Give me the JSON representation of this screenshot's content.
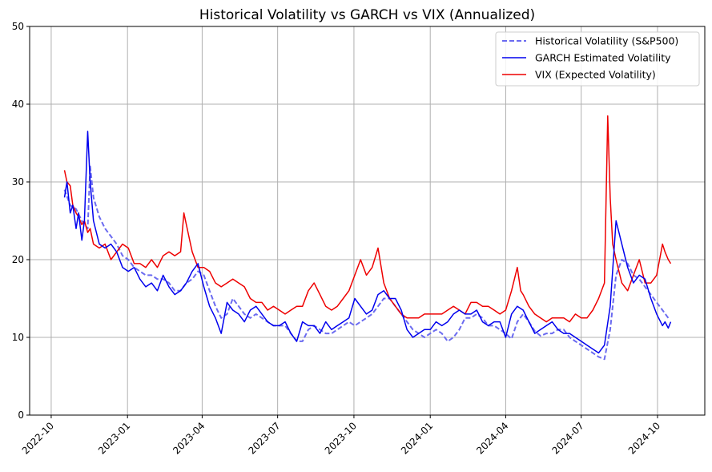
{
  "chart_data": {
    "type": "line",
    "title": "Historical Volatility vs GARCH vs VIX (Annualized)",
    "xlabel": "",
    "ylabel": "",
    "xlim": [
      "2022-09-05",
      "2024-11-27"
    ],
    "ylim": [
      0,
      50
    ],
    "x_ticks": [
      "2022-10",
      "2023-01",
      "2023-04",
      "2023-07",
      "2023-10",
      "2024-01",
      "2024-04",
      "2024-07",
      "2024-10"
    ],
    "y_ticks": [
      0,
      10,
      20,
      30,
      40,
      50
    ],
    "grid": true,
    "legend_position": "top-right",
    "series": [
      {
        "name": "Historical Volatility (S&P500)",
        "color": "#6b6bf0",
        "style": "dashed",
        "x": [
          "2022-10-17",
          "2022-10-24",
          "2022-10-31",
          "2022-11-07",
          "2022-11-14",
          "2022-11-17",
          "2022-11-21",
          "2022-11-28",
          "2022-12-05",
          "2022-12-12",
          "2022-12-19",
          "2022-12-26",
          "2023-01-02",
          "2023-01-09",
          "2023-01-16",
          "2023-01-23",
          "2023-01-30",
          "2023-02-06",
          "2023-02-13",
          "2023-02-20",
          "2023-02-27",
          "2023-03-06",
          "2023-03-13",
          "2023-03-20",
          "2023-03-27",
          "2023-04-03",
          "2023-04-10",
          "2023-04-17",
          "2023-04-24",
          "2023-05-01",
          "2023-05-08",
          "2023-05-15",
          "2023-05-22",
          "2023-05-29",
          "2023-06-05",
          "2023-06-12",
          "2023-06-19",
          "2023-06-26",
          "2023-07-03",
          "2023-07-10",
          "2023-07-17",
          "2023-07-24",
          "2023-07-31",
          "2023-08-07",
          "2023-08-14",
          "2023-08-21",
          "2023-08-28",
          "2023-09-04",
          "2023-09-11",
          "2023-09-18",
          "2023-09-25",
          "2023-10-02",
          "2023-10-09",
          "2023-10-16",
          "2023-10-23",
          "2023-10-30",
          "2023-11-06",
          "2023-11-13",
          "2023-11-20",
          "2023-11-27",
          "2023-12-04",
          "2023-12-11",
          "2023-12-18",
          "2023-12-25",
          "2024-01-01",
          "2024-01-08",
          "2024-01-15",
          "2024-01-22",
          "2024-01-29",
          "2024-02-05",
          "2024-02-12",
          "2024-02-19",
          "2024-02-26",
          "2024-03-04",
          "2024-03-11",
          "2024-03-18",
          "2024-03-25",
          "2024-04-01",
          "2024-04-08",
          "2024-04-15",
          "2024-04-22",
          "2024-04-29",
          "2024-05-06",
          "2024-05-13",
          "2024-05-20",
          "2024-05-27",
          "2024-06-03",
          "2024-06-10",
          "2024-06-17",
          "2024-06-24",
          "2024-07-01",
          "2024-07-08",
          "2024-07-15",
          "2024-07-22",
          "2024-07-29",
          "2024-08-05",
          "2024-08-12",
          "2024-08-19",
          "2024-08-26",
          "2024-09-02",
          "2024-09-09",
          "2024-09-16",
          "2024-09-23",
          "2024-09-30",
          "2024-10-07",
          "2024-10-14"
        ],
        "values": [
          29,
          27,
          26.5,
          25,
          24,
          32,
          28,
          25.5,
          24,
          23,
          22,
          20.5,
          20,
          19,
          18.5,
          18,
          18,
          17.5,
          17.5,
          17,
          16,
          16,
          17,
          17.5,
          18.5,
          18,
          16,
          14,
          12.5,
          13,
          15,
          14,
          13,
          12.5,
          13,
          12.5,
          12,
          11.5,
          11.5,
          11.5,
          10.5,
          9.5,
          9.5,
          11,
          11.5,
          11,
          10.5,
          10.5,
          11,
          11.5,
          12,
          11.5,
          12,
          12.5,
          13,
          14,
          15,
          15,
          14,
          13,
          12,
          11,
          10.5,
          10,
          10.5,
          11,
          10.5,
          9.5,
          10,
          11,
          12.5,
          12.5,
          13,
          12.5,
          11.5,
          11.5,
          11,
          10.5,
          9.8,
          12,
          13,
          12,
          10.8,
          10.2,
          10.5,
          10.5,
          11,
          11,
          10,
          9.5,
          9,
          8.5,
          8,
          7.5,
          7.2,
          11,
          18,
          20,
          19.5,
          18,
          17.5,
          16.5,
          15.5,
          14.5,
          13.5,
          12.5
        ]
      },
      {
        "name": "GARCH Estimated Volatility",
        "color": "#0000ee",
        "style": "solid",
        "x": [
          "2022-10-17",
          "2022-10-20",
          "2022-10-24",
          "2022-10-27",
          "2022-10-31",
          "2022-11-03",
          "2022-11-07",
          "2022-11-10",
          "2022-11-14",
          "2022-11-17",
          "2022-11-21",
          "2022-11-28",
          "2022-12-05",
          "2022-12-12",
          "2022-12-19",
          "2022-12-26",
          "2023-01-02",
          "2023-01-09",
          "2023-01-16",
          "2023-01-23",
          "2023-01-30",
          "2023-02-06",
          "2023-02-13",
          "2023-02-20",
          "2023-02-27",
          "2023-03-06",
          "2023-03-13",
          "2023-03-20",
          "2023-03-27",
          "2023-04-03",
          "2023-04-10",
          "2023-04-17",
          "2023-04-24",
          "2023-05-01",
          "2023-05-08",
          "2023-05-15",
          "2023-05-22",
          "2023-05-29",
          "2023-06-05",
          "2023-06-12",
          "2023-06-19",
          "2023-06-26",
          "2023-07-03",
          "2023-07-10",
          "2023-07-17",
          "2023-07-24",
          "2023-07-31",
          "2023-08-07",
          "2023-08-14",
          "2023-08-21",
          "2023-08-28",
          "2023-09-04",
          "2023-09-11",
          "2023-09-18",
          "2023-09-25",
          "2023-10-02",
          "2023-10-09",
          "2023-10-16",
          "2023-10-23",
          "2023-10-30",
          "2023-11-06",
          "2023-11-13",
          "2023-11-20",
          "2023-11-27",
          "2023-12-04",
          "2023-12-11",
          "2023-12-18",
          "2023-12-25",
          "2024-01-01",
          "2024-01-08",
          "2024-01-15",
          "2024-01-22",
          "2024-01-29",
          "2024-02-05",
          "2024-02-12",
          "2024-02-19",
          "2024-02-26",
          "2024-03-04",
          "2024-03-11",
          "2024-03-18",
          "2024-03-25",
          "2024-04-01",
          "2024-04-08",
          "2024-04-15",
          "2024-04-22",
          "2024-04-29",
          "2024-05-06",
          "2024-05-13",
          "2024-05-20",
          "2024-05-27",
          "2024-06-03",
          "2024-06-10",
          "2024-06-17",
          "2024-06-24",
          "2024-07-01",
          "2024-07-08",
          "2024-07-15",
          "2024-07-22",
          "2024-07-29",
          "2024-08-05",
          "2024-08-12",
          "2024-08-19",
          "2024-08-26",
          "2024-09-02",
          "2024-09-09",
          "2024-09-16",
          "2024-09-23",
          "2024-09-30",
          "2024-10-07",
          "2024-10-10",
          "2024-10-14",
          "2024-10-17"
        ],
        "values": [
          28,
          30,
          26,
          27,
          24,
          26,
          22.5,
          25,
          36.5,
          30,
          25,
          22,
          21.5,
          22,
          21,
          19,
          18.5,
          19,
          17.5,
          16.5,
          17,
          16,
          18,
          16.5,
          15.5,
          16,
          17,
          18.5,
          19.5,
          16.5,
          14,
          12.5,
          10.5,
          14.5,
          13.5,
          13,
          12,
          13.5,
          14,
          13,
          12,
          11.5,
          11.5,
          12,
          10.5,
          9.5,
          12,
          11.5,
          11.5,
          10.5,
          12,
          11,
          11.5,
          12,
          12.5,
          15,
          14,
          13,
          13.5,
          15.5,
          16,
          15,
          15,
          13.5,
          11,
          10,
          10.5,
          11,
          11,
          12,
          11.5,
          12,
          13,
          13.5,
          13,
          13,
          13.5,
          12,
          11.5,
          12,
          12,
          10,
          13,
          14,
          13.5,
          12,
          10.5,
          11,
          11.5,
          12,
          11,
          10.5,
          10.5,
          10,
          9.5,
          9,
          8.5,
          8,
          9,
          14,
          25,
          22,
          19,
          17,
          18,
          17.5,
          15,
          13,
          11.5,
          12,
          11.2,
          12
        ]
      },
      {
        "name": "VIX (Expected Volatility)",
        "color": "#ee0000",
        "style": "solid",
        "x": [
          "2022-10-17",
          "2022-10-20",
          "2022-10-24",
          "2022-10-27",
          "2022-10-31",
          "2022-11-03",
          "2022-11-07",
          "2022-11-10",
          "2022-11-14",
          "2022-11-17",
          "2022-11-21",
          "2022-11-28",
          "2022-12-05",
          "2022-12-12",
          "2022-12-19",
          "2022-12-26",
          "2023-01-02",
          "2023-01-09",
          "2023-01-16",
          "2023-01-23",
          "2023-01-30",
          "2023-02-06",
          "2023-02-13",
          "2023-02-20",
          "2023-02-27",
          "2023-03-06",
          "2023-03-10",
          "2023-03-13",
          "2023-03-16",
          "2023-03-20",
          "2023-03-27",
          "2023-04-03",
          "2023-04-10",
          "2023-04-17",
          "2023-04-24",
          "2023-05-01",
          "2023-05-08",
          "2023-05-15",
          "2023-05-22",
          "2023-05-29",
          "2023-06-05",
          "2023-06-12",
          "2023-06-19",
          "2023-06-26",
          "2023-07-03",
          "2023-07-10",
          "2023-07-17",
          "2023-07-24",
          "2023-07-31",
          "2023-08-07",
          "2023-08-14",
          "2023-08-21",
          "2023-08-28",
          "2023-09-04",
          "2023-09-11",
          "2023-09-18",
          "2023-09-25",
          "2023-10-02",
          "2023-10-09",
          "2023-10-16",
          "2023-10-23",
          "2023-10-30",
          "2023-11-06",
          "2023-11-13",
          "2023-11-20",
          "2023-11-27",
          "2023-12-04",
          "2023-12-11",
          "2023-12-18",
          "2023-12-25",
          "2024-01-01",
          "2024-01-08",
          "2024-01-15",
          "2024-01-22",
          "2024-01-29",
          "2024-02-05",
          "2024-02-12",
          "2024-02-19",
          "2024-02-26",
          "2024-03-04",
          "2024-03-11",
          "2024-03-18",
          "2024-03-25",
          "2024-04-01",
          "2024-04-08",
          "2024-04-15",
          "2024-04-19",
          "2024-04-22",
          "2024-04-29",
          "2024-05-06",
          "2024-05-13",
          "2024-05-20",
          "2024-05-27",
          "2024-06-03",
          "2024-06-10",
          "2024-06-17",
          "2024-06-24",
          "2024-07-01",
          "2024-07-08",
          "2024-07-15",
          "2024-07-22",
          "2024-07-29",
          "2024-08-02",
          "2024-08-05",
          "2024-08-08",
          "2024-08-12",
          "2024-08-19",
          "2024-08-26",
          "2024-09-02",
          "2024-09-09",
          "2024-09-16",
          "2024-09-23",
          "2024-09-30",
          "2024-10-07",
          "2024-10-10",
          "2024-10-14",
          "2024-10-17"
        ],
        "values": [
          31.5,
          30,
          29.5,
          27,
          26,
          25.5,
          24.5,
          25,
          23.5,
          24,
          22,
          21.5,
          22,
          20,
          21,
          22,
          21.5,
          19.5,
          19.5,
          19,
          20,
          19,
          20.5,
          21,
          20.5,
          21,
          26,
          24.5,
          23,
          21,
          19,
          19,
          18.5,
          17,
          16.5,
          17,
          17.5,
          17,
          16.5,
          15,
          14.5,
          14.5,
          13.5,
          14,
          13.5,
          13,
          13.5,
          14,
          14,
          16,
          17,
          15.5,
          14,
          13.5,
          14,
          15,
          16,
          18,
          20,
          18,
          19,
          21.5,
          17,
          15,
          14,
          13,
          12.5,
          12.5,
          12.5,
          13,
          13,
          13,
          13,
          13.5,
          14,
          13.5,
          13,
          14.5,
          14.5,
          14,
          14,
          13.5,
          13,
          13.5,
          16,
          19,
          16,
          15.5,
          14,
          13,
          12.5,
          12,
          12.5,
          12.5,
          12.5,
          12,
          13,
          12.5,
          12.5,
          13.5,
          15,
          17,
          38.5,
          28,
          22,
          20,
          17,
          16,
          18,
          20,
          17,
          17,
          18,
          22,
          21,
          20,
          19.5
        ]
      }
    ]
  }
}
